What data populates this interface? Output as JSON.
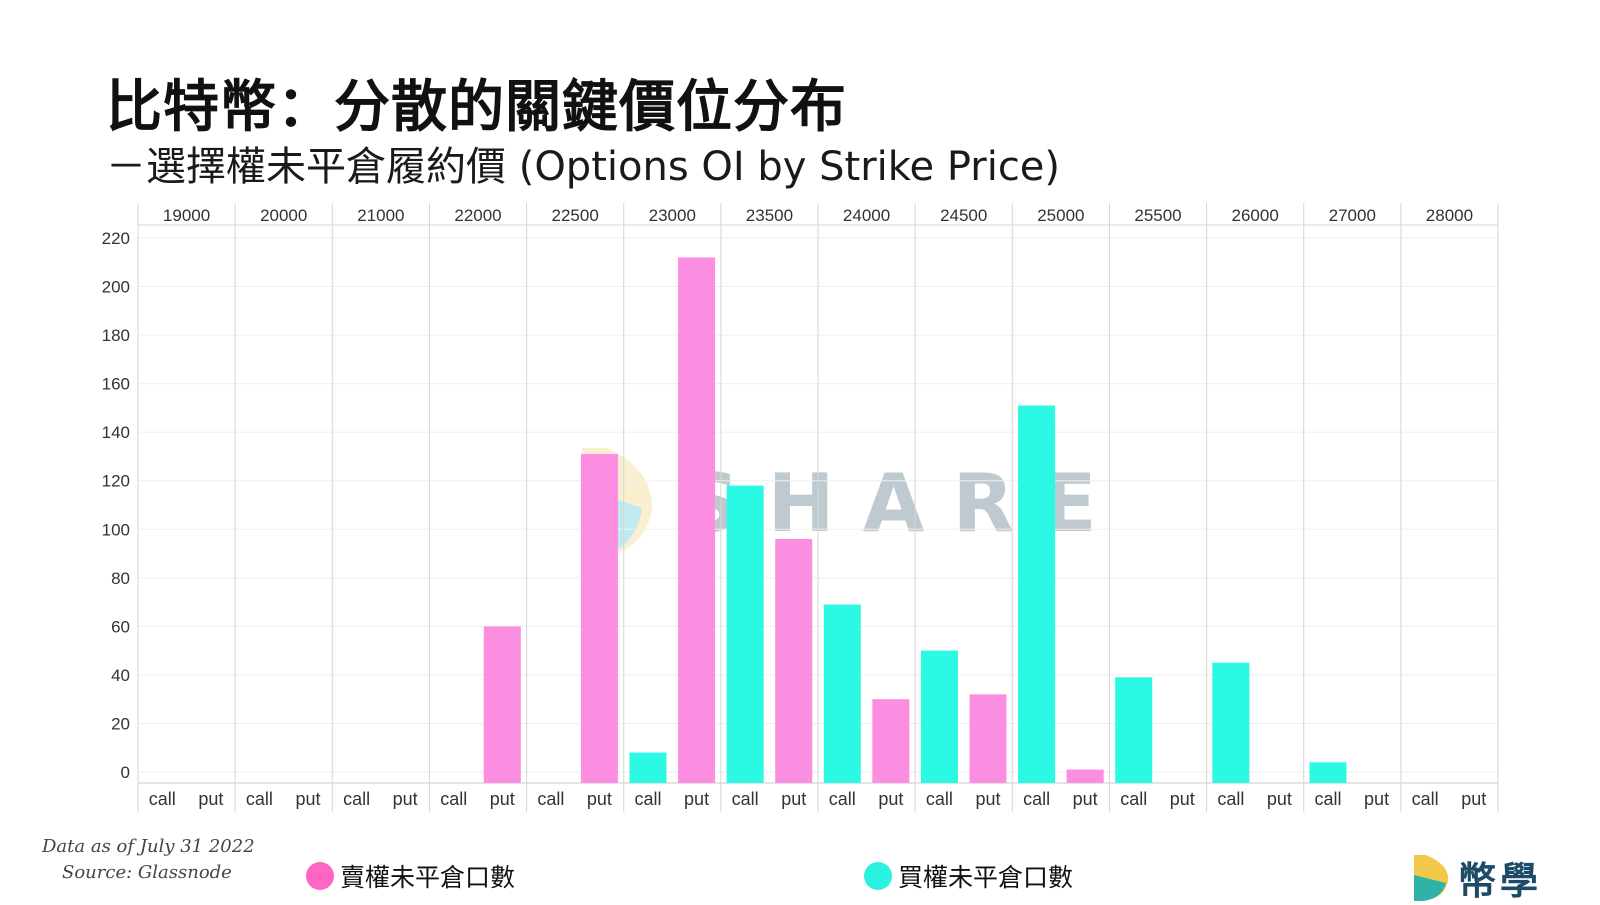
{
  "header": {
    "title": "比特幣：分散的關鍵價位分布",
    "subtitle": "－選擇權未平倉履約價 (Options OI by Strike Price)"
  },
  "footer": {
    "data_as_of": "Data as of July 31 2022",
    "source": "Source: Glassnode"
  },
  "legend": [
    {
      "label": "賣權未平倉口數",
      "color": "#ff66c4"
    },
    {
      "label": "買權未平倉口數",
      "color": "#2bf2e0"
    }
  ],
  "brand": {
    "name": "幣學"
  },
  "watermark": {
    "text": "SHARE"
  },
  "colors": {
    "put": "#fc8ee2",
    "call": "#2bf9e4"
  },
  "chart_data": {
    "type": "bar",
    "title": "",
    "xlabel": "",
    "ylabel": "",
    "ylim": [
      0,
      220
    ],
    "yticks": [
      0,
      20,
      40,
      60,
      80,
      100,
      120,
      140,
      160,
      180,
      200,
      220
    ],
    "strikes": [
      "19000",
      "20000",
      "21000",
      "22000",
      "22500",
      "23000",
      "23500",
      "24000",
      "24500",
      "25000",
      "25500",
      "26000",
      "27000",
      "28000"
    ],
    "subcategories": [
      "call",
      "put"
    ],
    "series": [
      {
        "name": "call",
        "values": [
          0,
          0,
          0,
          0,
          0,
          8,
          118,
          69,
          50,
          151,
          39,
          45,
          4,
          0
        ]
      },
      {
        "name": "put",
        "values": [
          0,
          0,
          0,
          60,
          131,
          212,
          96,
          30,
          32,
          1,
          0,
          0,
          0,
          0
        ]
      }
    ]
  }
}
